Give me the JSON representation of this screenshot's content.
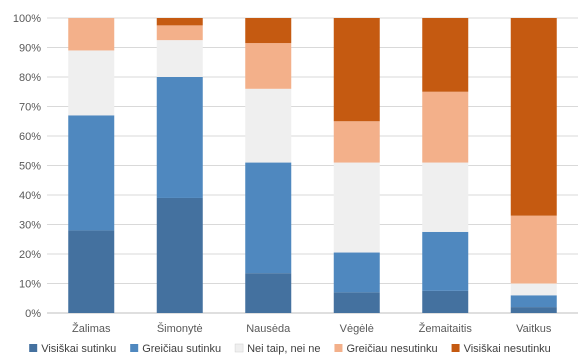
{
  "chart_data": {
    "type": "bar",
    "stacked": true,
    "percent": true,
    "categories": [
      "Žalimas",
      "Šimonytė",
      "Nausėda",
      "Vėgėlė",
      "Žemaitaitis",
      "Vaitkus"
    ],
    "series": [
      {
        "name": "Visiškai sutinku",
        "color": "#44719f",
        "values": [
          28,
          39,
          13.5,
          7,
          7.5,
          2
        ]
      },
      {
        "name": "Greičiau sutinku",
        "color": "#4f88bf",
        "values": [
          39,
          41,
          37.5,
          13.5,
          20,
          4
        ]
      },
      {
        "name": "Nei taip, nei ne",
        "color": "#efefef",
        "values": [
          22,
          12.5,
          25,
          30.5,
          23.5,
          4
        ]
      },
      {
        "name": "Greičiau nesutinku",
        "color": "#f3b08a",
        "values": [
          11,
          5,
          15.5,
          14,
          24,
          23
        ]
      },
      {
        "name": "Visiškai nesutinku",
        "color": "#c55a11",
        "values": [
          0,
          2.5,
          8.5,
          35,
          25,
          67
        ]
      }
    ],
    "y_ticks": [
      "0%",
      "10%",
      "20%",
      "30%",
      "40%",
      "50%",
      "60%",
      "70%",
      "80%",
      "90%",
      "100%"
    ],
    "ylim": [
      0,
      100
    ],
    "grid": true,
    "legend_position": "bottom"
  }
}
